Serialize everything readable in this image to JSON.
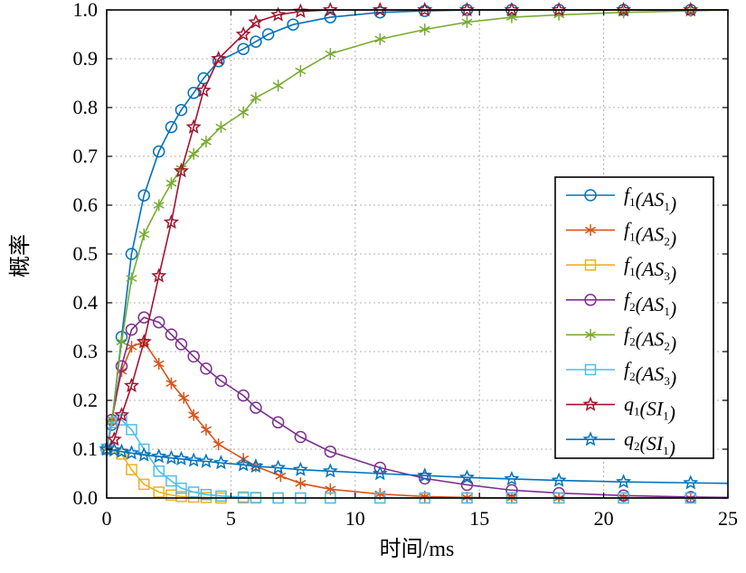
{
  "chart_data": {
    "type": "line",
    "xlabel": "时间/ms",
    "ylabel": "概率",
    "xlim": [
      0,
      25
    ],
    "ylim": [
      0,
      1.0
    ],
    "xticks": [
      "0",
      "5",
      "10",
      "15",
      "20",
      "25"
    ],
    "yticks": [
      "0.0",
      "0.1",
      "0.2",
      "0.3",
      "0.4",
      "0.5",
      "0.6",
      "0.7",
      "0.8",
      "0.9",
      "1.0"
    ],
    "grid": true,
    "legend_position": "right",
    "series": [
      {
        "name": "f1(AS1)",
        "fn": "f",
        "fsub": "1",
        "arg": "AS",
        "asub": "1",
        "color": "#0072BD",
        "marker": "circle",
        "points": [
          [
            0,
            0.1
          ],
          [
            0.2,
            0.15
          ],
          [
            0.6,
            0.33
          ],
          [
            1.0,
            0.5
          ],
          [
            1.5,
            0.62
          ],
          [
            2.1,
            0.71
          ],
          [
            2.6,
            0.76
          ],
          [
            3.0,
            0.795
          ],
          [
            3.5,
            0.83
          ],
          [
            3.9,
            0.86
          ],
          [
            4.5,
            0.895
          ],
          [
            5.5,
            0.92
          ],
          [
            6.0,
            0.935
          ],
          [
            6.5,
            0.95
          ],
          [
            7.5,
            0.97
          ],
          [
            9.0,
            0.985
          ],
          [
            11.0,
            0.995
          ],
          [
            12.8,
            0.998
          ],
          [
            14.5,
            1.0
          ],
          [
            16.3,
            1.0
          ],
          [
            18.2,
            1.0
          ],
          [
            20.8,
            1.0
          ],
          [
            23.5,
            1.0
          ],
          [
            25,
            1.0
          ]
        ]
      },
      {
        "name": "f1(AS2)",
        "fn": "f",
        "fsub": "1",
        "arg": "AS",
        "asub": "2",
        "color": "#D95319",
        "marker": "asterisk",
        "points": [
          [
            0,
            0.1
          ],
          [
            0.2,
            0.16
          ],
          [
            0.6,
            0.26
          ],
          [
            1.0,
            0.31
          ],
          [
            1.5,
            0.32
          ],
          [
            2.1,
            0.275
          ],
          [
            2.6,
            0.235
          ],
          [
            3.1,
            0.205
          ],
          [
            3.5,
            0.17
          ],
          [
            4.0,
            0.14
          ],
          [
            4.5,
            0.11
          ],
          [
            5.5,
            0.08
          ],
          [
            6.0,
            0.065
          ],
          [
            7.0,
            0.045
          ],
          [
            7.8,
            0.03
          ],
          [
            9.0,
            0.018
          ],
          [
            11.0,
            0.008
          ],
          [
            12.8,
            0.003
          ],
          [
            14.5,
            0.001
          ],
          [
            16.3,
            0.0
          ],
          [
            18.2,
            0.0
          ],
          [
            20.8,
            0.0
          ],
          [
            23.5,
            0.0
          ],
          [
            25,
            0.0
          ]
        ]
      },
      {
        "name": "f1(AS3)",
        "fn": "f",
        "fsub": "1",
        "arg": "AS",
        "asub": "3",
        "color": "#EDB120",
        "marker": "square",
        "points": [
          [
            0,
            0.1
          ],
          [
            0.6,
            0.09
          ],
          [
            1.0,
            0.058
          ],
          [
            1.5,
            0.028
          ],
          [
            2.1,
            0.012
          ],
          [
            2.6,
            0.006
          ],
          [
            3.0,
            0.003
          ],
          [
            3.5,
            0.002
          ],
          [
            4.0,
            0.001
          ],
          [
            4.6,
            0.0
          ],
          [
            5.5,
            0.0
          ],
          [
            6.0,
            0.0
          ],
          [
            6.9,
            0.0
          ],
          [
            7.8,
            0.0
          ],
          [
            9.0,
            0.0
          ],
          [
            11.0,
            0.0
          ],
          [
            12.8,
            0.0
          ],
          [
            14.5,
            0.0
          ],
          [
            16.3,
            0.0
          ],
          [
            18.2,
            0.0
          ],
          [
            20.8,
            0.0
          ],
          [
            23.5,
            0.0
          ],
          [
            25,
            0.0
          ]
        ]
      },
      {
        "name": "f2(AS1)",
        "fn": "f",
        "fsub": "2",
        "arg": "AS",
        "asub": "1",
        "color": "#7E2F8E",
        "marker": "circle",
        "points": [
          [
            0,
            0.1
          ],
          [
            0.2,
            0.16
          ],
          [
            0.6,
            0.27
          ],
          [
            1.0,
            0.345
          ],
          [
            1.5,
            0.37
          ],
          [
            2.1,
            0.36
          ],
          [
            2.6,
            0.335
          ],
          [
            3.0,
            0.315
          ],
          [
            3.5,
            0.29
          ],
          [
            4.0,
            0.265
          ],
          [
            4.6,
            0.24
          ],
          [
            5.5,
            0.21
          ],
          [
            6.0,
            0.185
          ],
          [
            6.9,
            0.155
          ],
          [
            7.8,
            0.125
          ],
          [
            9.0,
            0.095
          ],
          [
            11.0,
            0.062
          ],
          [
            12.8,
            0.04
          ],
          [
            14.5,
            0.027
          ],
          [
            16.3,
            0.016
          ],
          [
            18.2,
            0.01
          ],
          [
            20.8,
            0.005
          ],
          [
            23.5,
            0.002
          ],
          [
            25,
            0.001
          ]
        ]
      },
      {
        "name": "f2(AS2)",
        "fn": "f",
        "fsub": "2",
        "arg": "AS",
        "asub": "2",
        "color": "#77AC30",
        "marker": "asterisk",
        "points": [
          [
            0,
            0.1
          ],
          [
            0.2,
            0.155
          ],
          [
            0.6,
            0.32
          ],
          [
            1.0,
            0.45
          ],
          [
            1.5,
            0.54
          ],
          [
            2.1,
            0.6
          ],
          [
            2.6,
            0.645
          ],
          [
            3.0,
            0.675
          ],
          [
            3.5,
            0.705
          ],
          [
            4.0,
            0.73
          ],
          [
            4.6,
            0.76
          ],
          [
            5.5,
            0.79
          ],
          [
            6.0,
            0.82
          ],
          [
            6.9,
            0.845
          ],
          [
            7.8,
            0.875
          ],
          [
            9.0,
            0.91
          ],
          [
            11.0,
            0.94
          ],
          [
            12.8,
            0.96
          ],
          [
            14.5,
            0.975
          ],
          [
            16.3,
            0.985
          ],
          [
            18.2,
            0.99
          ],
          [
            20.8,
            0.995
          ],
          [
            23.5,
            0.998
          ],
          [
            25,
            1.0
          ]
        ]
      },
      {
        "name": "f2(AS3)",
        "fn": "f",
        "fsub": "2",
        "arg": "AS",
        "asub": "3",
        "color": "#4DBEEE",
        "marker": "square",
        "points": [
          [
            0,
            0.1
          ],
          [
            0.2,
            0.155
          ],
          [
            0.6,
            0.16
          ],
          [
            1.0,
            0.14
          ],
          [
            1.5,
            0.1
          ],
          [
            2.1,
            0.055
          ],
          [
            2.6,
            0.035
          ],
          [
            3.0,
            0.02
          ],
          [
            3.5,
            0.012
          ],
          [
            4.0,
            0.007
          ],
          [
            4.6,
            0.004
          ],
          [
            5.5,
            0.002
          ],
          [
            6.0,
            0.001
          ],
          [
            6.9,
            0.0
          ],
          [
            7.8,
            0.0
          ],
          [
            9.0,
            0.0
          ],
          [
            11.0,
            0.0
          ],
          [
            12.8,
            0.0
          ],
          [
            14.5,
            0.0
          ],
          [
            16.3,
            0.0
          ],
          [
            18.2,
            0.0
          ],
          [
            20.8,
            0.0
          ],
          [
            23.5,
            0.0
          ],
          [
            25,
            0.0
          ]
        ]
      },
      {
        "name": "q1(SI1)",
        "fn": "q",
        "fsub": "1",
        "arg": "SI",
        "asub": "1",
        "color": "#A2142F",
        "marker": "star",
        "points": [
          [
            0,
            0.1
          ],
          [
            0.3,
            0.12
          ],
          [
            0.6,
            0.17
          ],
          [
            1.0,
            0.23
          ],
          [
            1.5,
            0.32
          ],
          [
            2.1,
            0.455
          ],
          [
            2.6,
            0.565
          ],
          [
            3.0,
            0.67
          ],
          [
            3.5,
            0.76
          ],
          [
            3.9,
            0.835
          ],
          [
            4.5,
            0.9
          ],
          [
            5.5,
            0.95
          ],
          [
            6.0,
            0.975
          ],
          [
            6.9,
            0.99
          ],
          [
            7.8,
            0.997
          ],
          [
            9.0,
            1.0
          ],
          [
            11.0,
            1.0
          ],
          [
            12.8,
            1.0
          ],
          [
            14.5,
            1.0
          ],
          [
            16.3,
            1.0
          ],
          [
            18.2,
            1.0
          ],
          [
            20.8,
            1.0
          ],
          [
            23.5,
            1.0
          ],
          [
            25,
            1.0
          ]
        ]
      },
      {
        "name": "q2(SI1)",
        "fn": "q",
        "fsub": "2",
        "arg": "SI",
        "asub": "1",
        "color": "#0072BD",
        "marker": "star",
        "points": [
          [
            0,
            0.1
          ],
          [
            0.3,
            0.098
          ],
          [
            0.6,
            0.095
          ],
          [
            1.0,
            0.092
          ],
          [
            1.5,
            0.088
          ],
          [
            2.1,
            0.085
          ],
          [
            2.6,
            0.082
          ],
          [
            3.0,
            0.08
          ],
          [
            3.5,
            0.077
          ],
          [
            4.0,
            0.075
          ],
          [
            4.6,
            0.072
          ],
          [
            5.5,
            0.068
          ],
          [
            6.0,
            0.065
          ],
          [
            6.9,
            0.062
          ],
          [
            7.8,
            0.058
          ],
          [
            9.0,
            0.055
          ],
          [
            11.0,
            0.05
          ],
          [
            12.8,
            0.046
          ],
          [
            14.5,
            0.042
          ],
          [
            16.3,
            0.039
          ],
          [
            18.2,
            0.036
          ],
          [
            20.8,
            0.033
          ],
          [
            23.5,
            0.031
          ],
          [
            25,
            0.03
          ]
        ]
      }
    ]
  }
}
